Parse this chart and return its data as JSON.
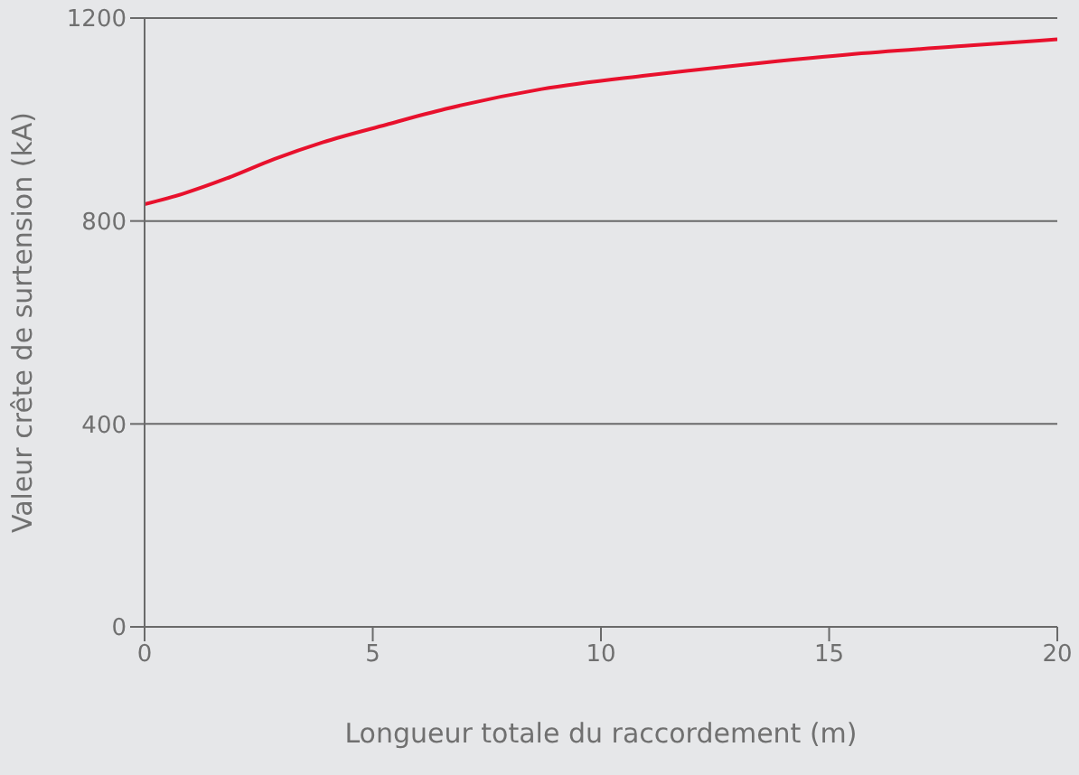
{
  "chart_data": {
    "type": "line",
    "xlabel": "Longueur totale du raccordement (m)",
    "ylabel": "Valeur crête de surtension (kA)",
    "x": [
      0,
      0.85,
      1.8,
      2.84,
      3.9,
      5.3,
      6.6,
      8.7,
      11,
      12.7,
      15.4,
      18.1,
      20
    ],
    "series": [
      {
        "color": "#e8112d",
        "values": [
          833,
          854,
          884,
          922,
          955,
          990,
          1021,
          1060,
          1087,
          1104,
          1128,
          1146,
          1158
        ]
      }
    ],
    "xlim": [
      0,
      20
    ],
    "xticks": [
      0,
      5,
      10,
      15,
      20
    ],
    "ylim": [
      0,
      1200
    ],
    "yticks": [
      0,
      400,
      800,
      1200
    ],
    "grid": "y",
    "marker": "none",
    "line_style": "solid"
  }
}
